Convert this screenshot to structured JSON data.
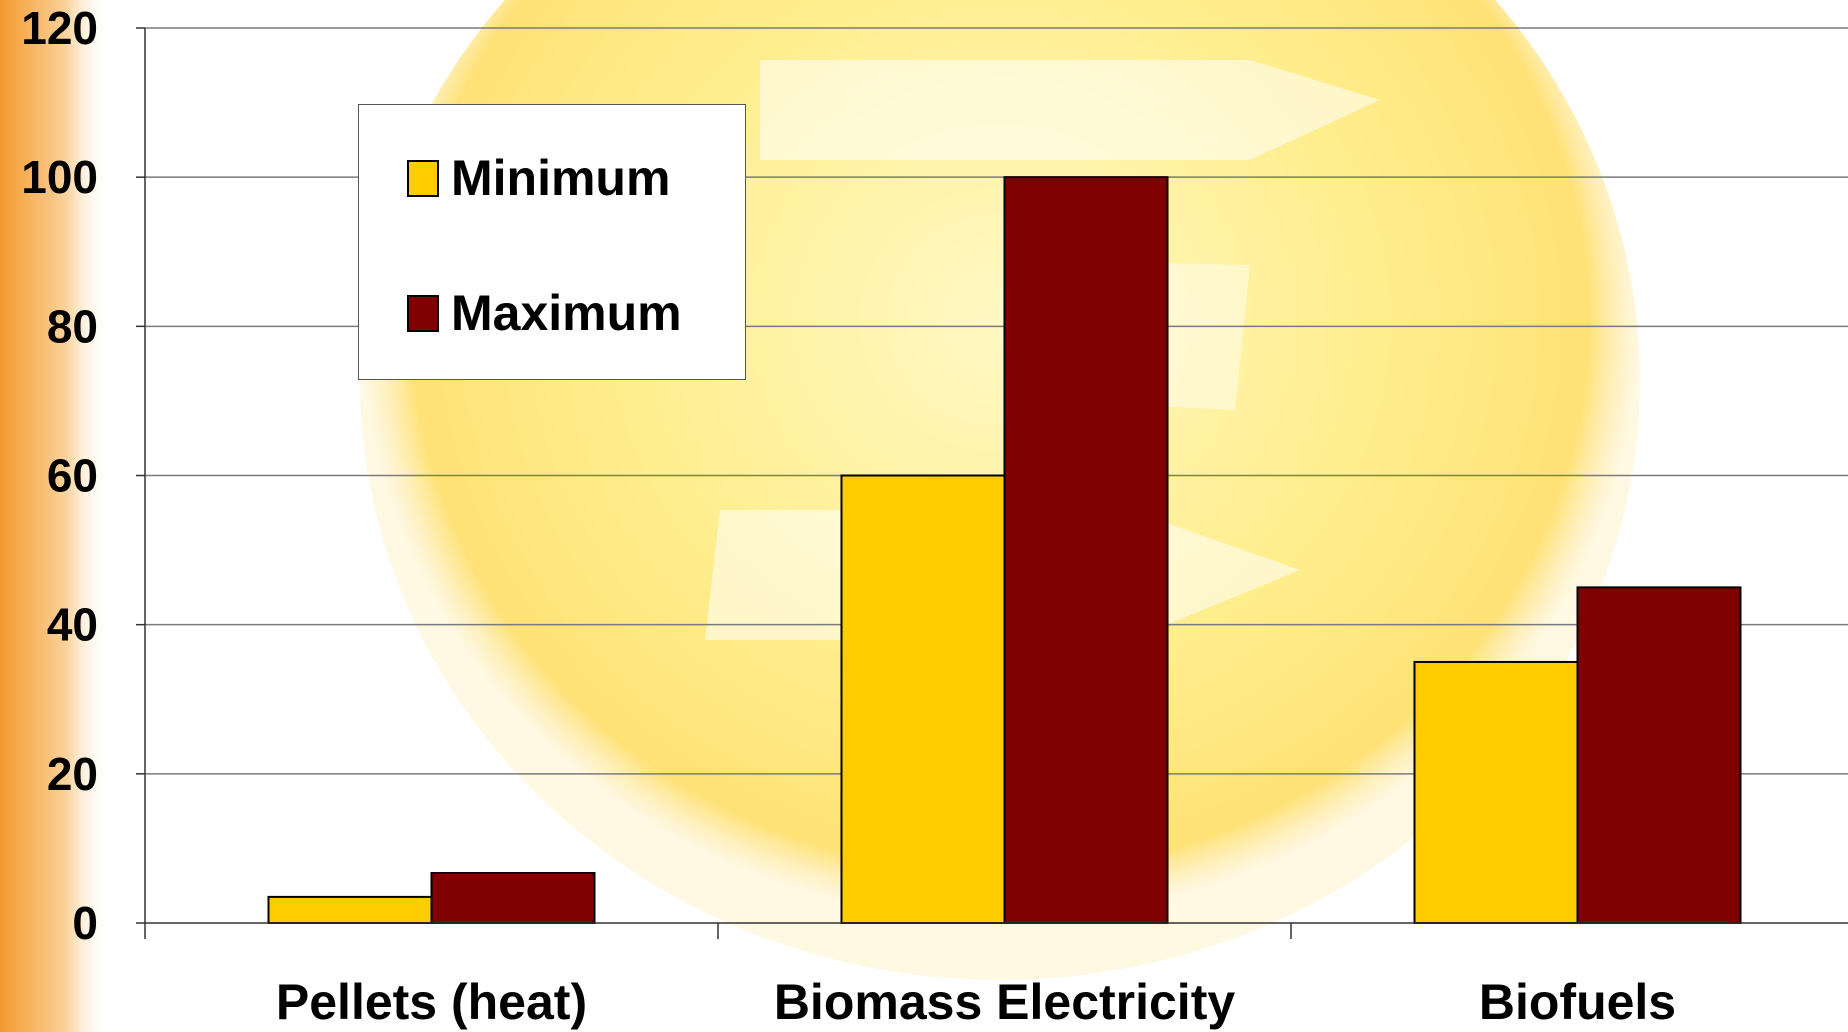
{
  "colors": {
    "minimum": "#FFCC00",
    "maximum": "#7F0000",
    "background_glow": "#FFE14A",
    "left_strip": "#F39A2E"
  },
  "legend": {
    "items": [
      {
        "label": "Minimum",
        "color": "#FFCC00"
      },
      {
        "label": "Maximum",
        "color": "#7F0000"
      }
    ]
  },
  "chart_data": {
    "type": "bar",
    "categories": [
      "Pellets (heat)",
      "Biomass Electricity",
      "Biofuels"
    ],
    "series": [
      {
        "name": "Minimum",
        "values": [
          3.5,
          60,
          35
        ]
      },
      {
        "name": "Maximum",
        "values": [
          6.7,
          100,
          45
        ]
      }
    ],
    "ylim": [
      0,
      120
    ],
    "yticks": [
      "0",
      "20",
      "40",
      "60",
      "80",
      "100",
      "120"
    ],
    "grid": true,
    "legend_position": "top-left"
  }
}
